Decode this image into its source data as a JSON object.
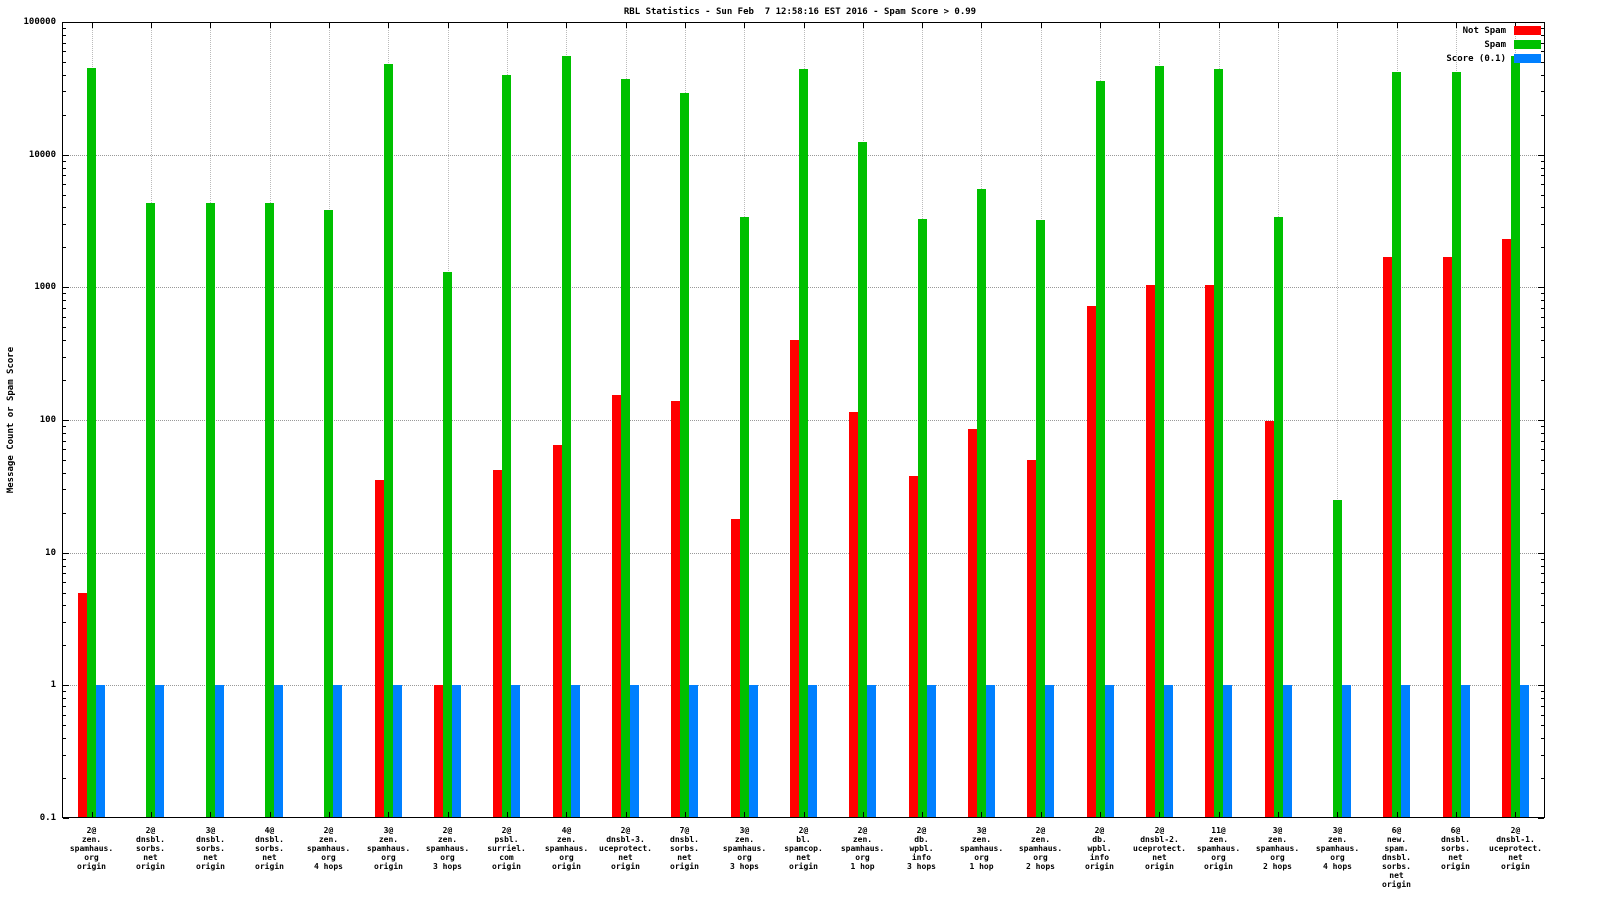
{
  "chart_data": {
    "type": "bar",
    "title": "RBL Statistics - Sun Feb  7 12:58:16 EST 2016 - Spam Score > 0.99",
    "xlabel": "",
    "ylabel": "Message Count or Spam Score",
    "y_scale": "log",
    "ylim": [
      0.1,
      100000
    ],
    "yticks": [
      0.1,
      1,
      10,
      100,
      1000,
      10000,
      100000
    ],
    "ytick_labels": [
      "0.1",
      "1",
      "10",
      "100",
      "1000",
      "10000",
      "100000"
    ],
    "grid": true,
    "legend_position": "top-right",
    "categories": [
      [
        "2@",
        "zen.",
        "spamhaus.",
        "org",
        "origin"
      ],
      [
        "2@",
        "dnsbl.",
        "sorbs.",
        "net",
        "origin"
      ],
      [
        "3@",
        "dnsbl.",
        "sorbs.",
        "net",
        "origin"
      ],
      [
        "4@",
        "dnsbl.",
        "sorbs.",
        "net",
        "origin"
      ],
      [
        "2@",
        "zen.",
        "spamhaus.",
        "org",
        "4 hops"
      ],
      [
        "3@",
        "zen.",
        "spamhaus.",
        "org",
        "origin"
      ],
      [
        "2@",
        "zen.",
        "spamhaus.",
        "org",
        "3 hops"
      ],
      [
        "2@",
        "psbl.",
        "surriel.",
        "com",
        "origin"
      ],
      [
        "4@",
        "zen.",
        "spamhaus.",
        "org",
        "origin"
      ],
      [
        "2@",
        "dnsbl-3.",
        "uceprotect.",
        "net",
        "origin"
      ],
      [
        "7@",
        "dnsbl.",
        "sorbs.",
        "net",
        "origin"
      ],
      [
        "3@",
        "zen.",
        "spamhaus.",
        "org",
        "3 hops"
      ],
      [
        "2@",
        "bl.",
        "spamcop.",
        "net",
        "origin"
      ],
      [
        "2@",
        "zen.",
        "spamhaus.",
        "org",
        "1 hop"
      ],
      [
        "2@",
        "db.",
        "wpbl.",
        "info",
        "3 hops"
      ],
      [
        "3@",
        "zen.",
        "spamhaus.",
        "org",
        "1 hop"
      ],
      [
        "2@",
        "zen.",
        "spamhaus.",
        "org",
        "2 hops"
      ],
      [
        "2@",
        "db.",
        "wpbl.",
        "info",
        "origin"
      ],
      [
        "2@",
        "dnsbl-2.",
        "uceprotect.",
        "net",
        "origin"
      ],
      [
        "11@",
        "zen.",
        "spamhaus.",
        "org",
        "origin"
      ],
      [
        "3@",
        "zen.",
        "spamhaus.",
        "org",
        "2 hops"
      ],
      [
        "3@",
        "zen.",
        "spamhaus.",
        "org",
        "4 hops"
      ],
      [
        "6@",
        "new.",
        "spam.",
        "dnsbl.",
        "sorbs.",
        "net",
        "origin"
      ],
      [
        "6@",
        "dnsbl.",
        "sorbs.",
        "net",
        "origin"
      ],
      [
        "2@",
        "dnsbl-1.",
        "uceprotect.",
        "net",
        "origin"
      ]
    ],
    "series": [
      {
        "name": "Not Spam",
        "color": "#ff0000",
        "values": [
          5,
          null,
          null,
          null,
          null,
          35,
          1,
          42,
          65,
          155,
          140,
          18,
          400,
          115,
          38,
          85,
          50,
          720,
          1050,
          1050,
          98,
          null,
          1700,
          1700,
          2300
        ]
      },
      {
        "name": "Spam",
        "color": "#00c000",
        "values": [
          45000,
          4300,
          4300,
          4300,
          3800,
          48000,
          1300,
          40000,
          55000,
          37000,
          29000,
          3400,
          44000,
          12500,
          3300,
          5500,
          3200,
          36000,
          47000,
          44000,
          3400,
          25,
          42000,
          42000,
          55000
        ]
      },
      {
        "name": "Score (0.1)",
        "color": "#0080ff",
        "values": [
          1,
          1,
          1,
          1,
          1,
          1,
          1,
          1,
          1,
          1,
          1,
          1,
          1,
          1,
          1,
          1,
          1,
          1,
          1,
          1,
          1,
          1,
          1,
          1,
          1
        ]
      }
    ]
  }
}
